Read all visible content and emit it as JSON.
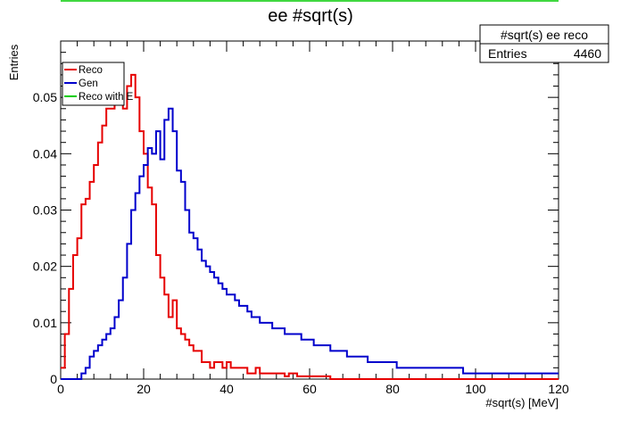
{
  "chart_data": {
    "type": "line",
    "title": "ee #sqrt(s)",
    "xlabel": "#sqrt(s) [MeV]",
    "ylabel": "Entries",
    "xlim": [
      0,
      120
    ],
    "ylim": [
      0,
      0.06
    ],
    "x_ticks": [
      0,
      20,
      40,
      60,
      80,
      100,
      120
    ],
    "y_ticks": [
      0,
      0.01,
      0.02,
      0.03,
      0.04,
      0.05
    ],
    "x_tick_labels": [
      "0",
      "20",
      "40",
      "60",
      "80",
      "100",
      "120"
    ],
    "y_tick_labels": [
      "0",
      "0.01",
      "0.02",
      "0.03",
      "0.04",
      "0.05"
    ],
    "bin_width": 1,
    "stats_box": {
      "title": "#sqrt(s) ee reco",
      "entries_label": "Entries",
      "entries_value": "4460"
    },
    "legend": {
      "position": "top-left"
    },
    "series": [
      {
        "name": "Reco",
        "color": "#e60000",
        "values": [
          0.002,
          0.008,
          0.016,
          0.022,
          0.025,
          0.031,
          0.032,
          0.035,
          0.038,
          0.042,
          0.045,
          0.048,
          0.048,
          0.049,
          0.05,
          0.048,
          0.052,
          0.054,
          0.05,
          0.044,
          0.04,
          0.034,
          0.031,
          0.022,
          0.018,
          0.015,
          0.011,
          0.014,
          0.009,
          0.008,
          0.007,
          0.006,
          0.005,
          0.005,
          0.003,
          0.003,
          0.002,
          0.003,
          0.003,
          0.002,
          0.003,
          0.002,
          0.002,
          0.002,
          0.002,
          0.001,
          0.001,
          0.002,
          0.001,
          0.001,
          0.001,
          0.001,
          0.001,
          0.001,
          0.0005,
          0.001,
          0.001,
          0.0005,
          0.0005,
          0.0005,
          0.0005,
          0.0005,
          0.0005,
          0.0005,
          0.0005,
          0,
          0,
          0,
          0,
          0,
          0,
          0,
          0,
          0,
          0,
          0,
          0,
          0,
          0,
          0,
          0,
          0,
          0,
          0,
          0,
          0,
          0,
          0,
          0,
          0,
          0,
          0,
          0,
          0,
          0,
          0,
          0,
          0,
          0,
          0,
          0,
          0,
          0,
          0,
          0,
          0,
          0,
          0,
          0,
          0,
          0,
          0,
          0,
          0,
          0,
          0,
          0,
          0,
          0,
          0
        ]
      },
      {
        "name": "Gen",
        "color": "#0000cc",
        "values": [
          0,
          0,
          0,
          0,
          0,
          0.001,
          0.002,
          0.004,
          0.005,
          0.006,
          0.007,
          0.008,
          0.009,
          0.011,
          0.014,
          0.018,
          0.024,
          0.03,
          0.033,
          0.036,
          0.038,
          0.041,
          0.04,
          0.044,
          0.039,
          0.046,
          0.048,
          0.044,
          0.037,
          0.035,
          0.03,
          0.026,
          0.025,
          0.023,
          0.021,
          0.02,
          0.019,
          0.018,
          0.017,
          0.016,
          0.015,
          0.015,
          0.014,
          0.013,
          0.013,
          0.012,
          0.011,
          0.011,
          0.01,
          0.01,
          0.01,
          0.009,
          0.009,
          0.009,
          0.008,
          0.008,
          0.008,
          0.008,
          0.007,
          0.007,
          0.007,
          0.006,
          0.006,
          0.006,
          0.006,
          0.005,
          0.005,
          0.005,
          0.005,
          0.004,
          0.004,
          0.004,
          0.004,
          0.004,
          0.003,
          0.003,
          0.003,
          0.003,
          0.003,
          0.003,
          0.003,
          0.002,
          0.002,
          0.002,
          0.002,
          0.002,
          0.002,
          0.002,
          0.002,
          0.002,
          0.002,
          0.002,
          0.002,
          0.002,
          0.002,
          0.002,
          0.002,
          0.001,
          0.001,
          0.001,
          0.001,
          0.001,
          0.001,
          0.001,
          0.001,
          0.001,
          0.001,
          0.001,
          0.001,
          0.001,
          0.001,
          0.001,
          0.001,
          0.001,
          0.001,
          0.001,
          0.001,
          0.001,
          0.001,
          0.001
        ]
      },
      {
        "name": "Reco with E",
        "color": "#00cc00",
        "values": []
      }
    ]
  }
}
